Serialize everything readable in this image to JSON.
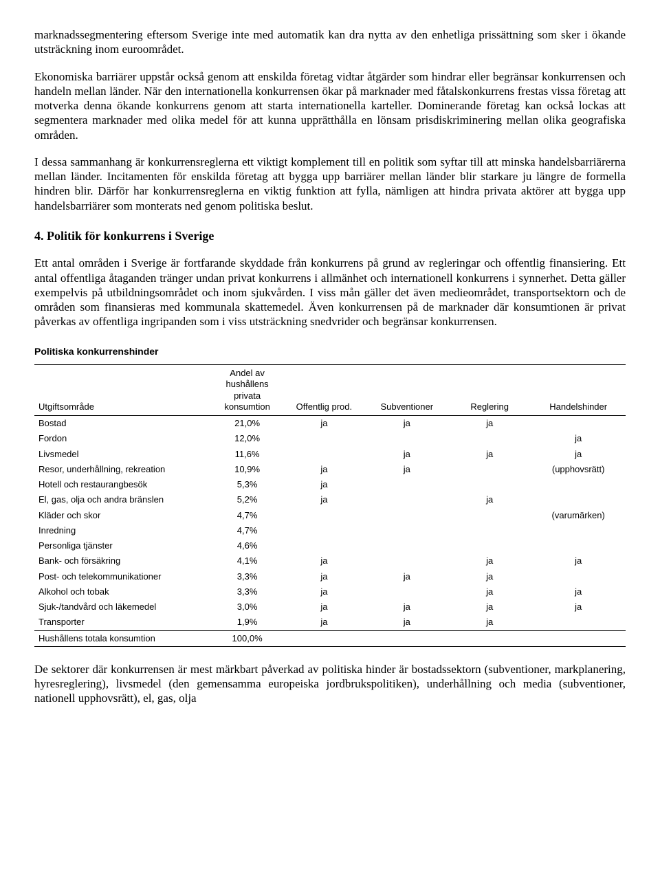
{
  "para1": "marknadssegmentering eftersom Sverige inte med automatik kan dra nytta av den enhetliga prissättning som sker i ökande utsträckning inom euroområdet.",
  "para2": "Ekonomiska barriärer uppstår också genom att enskilda företag vidtar åtgärder som hindrar eller begränsar konkurrensen och handeln mellan länder. När den internationella konkurrensen ökar på marknader med fåtalskonkurrens frestas vissa företag att motverka denna ökande konkurrens genom att starta internationella karteller. Dominerande företag kan också lockas att segmentera marknader med olika medel för att kunna upprätthålla en lönsam prisdiskriminering mellan olika geografiska områden.",
  "para3": "I dessa sammanhang är konkurrensreglerna ett viktigt komplement till en politik som syftar till att minska handelsbarriärerna mellan länder. Incitamenten för enskilda företag att bygga upp barriärer mellan länder blir starkare ju längre de formella hindren blir. Därför har konkurrensreglerna en viktig funktion att fylla, nämligen att hindra privata aktörer att bygga upp handelsbarriärer som monterats ned genom politiska beslut.",
  "heading": "4. Politik för konkurrens i Sverige",
  "para4": "Ett antal områden i Sverige är fortfarande skyddade från konkurrens på grund av regleringar och offentlig finansiering. Ett antal offentliga åtaganden tränger undan privat konkurrens i allmänhet och internationell konkurrens i synnerhet. Detta gäller exempelvis på utbildningsområdet och inom sjukvården. I viss mån gäller det även medieområdet, transportsektorn och de områden som finansieras med kommunala skattemedel. Även konkurrensen på de marknader där konsumtionen är privat påverkas av offentliga ingripanden som i viss utsträckning snedvrider och begränsar konkurrensen.",
  "tableTitle": "Politiska konkurrenshinder",
  "headers": {
    "area": "Utgiftsområde",
    "pct": "Andel av hushållens privata konsumtion",
    "off": "Offentlig prod.",
    "sub": "Subventioner",
    "reg": "Reglering",
    "hand": "Handelshinder"
  },
  "rows": [
    {
      "area": "Bostad",
      "pct": "21,0%",
      "off": "ja",
      "sub": "ja",
      "reg": "ja",
      "hand": ""
    },
    {
      "area": "Fordon",
      "pct": "12,0%",
      "off": "",
      "sub": "",
      "reg": "",
      "hand": "ja"
    },
    {
      "area": "Livsmedel",
      "pct": "11,6%",
      "off": "",
      "sub": "ja",
      "reg": "ja",
      "hand": "ja"
    },
    {
      "area": "Resor, underhållning, rekreation",
      "pct": "10,9%",
      "off": "ja",
      "sub": "ja",
      "reg": "",
      "hand": "(upphovsrätt)"
    },
    {
      "area": "Hotell och restaurangbesök",
      "pct": "5,3%",
      "off": "ja",
      "sub": "",
      "reg": "",
      "hand": ""
    },
    {
      "area": "El, gas, olja och andra bränslen",
      "pct": "5,2%",
      "off": "ja",
      "sub": "",
      "reg": "ja",
      "hand": ""
    },
    {
      "area": "Kläder och skor",
      "pct": "4,7%",
      "off": "",
      "sub": "",
      "reg": "",
      "hand": "(varumärken)"
    },
    {
      "area": "Inredning",
      "pct": "4,7%",
      "off": "",
      "sub": "",
      "reg": "",
      "hand": ""
    },
    {
      "area": "Personliga tjänster",
      "pct": "4,6%",
      "off": "",
      "sub": "",
      "reg": "",
      "hand": ""
    },
    {
      "area": "Bank- och försäkring",
      "pct": "4,1%",
      "off": "ja",
      "sub": "",
      "reg": "ja",
      "hand": "ja"
    },
    {
      "area": "Post- och telekommunikationer",
      "pct": "3,3%",
      "off": "ja",
      "sub": "ja",
      "reg": "ja",
      "hand": ""
    },
    {
      "area": "Alkohol och tobak",
      "pct": "3,3%",
      "off": "ja",
      "sub": "",
      "reg": "ja",
      "hand": "ja"
    },
    {
      "area": "Sjuk-/tandvård och läkemedel",
      "pct": "3,0%",
      "off": "ja",
      "sub": "ja",
      "reg": "ja",
      "hand": "ja"
    },
    {
      "area": "Transporter",
      "pct": "1,9%",
      "off": "ja",
      "sub": "ja",
      "reg": "ja",
      "hand": ""
    }
  ],
  "total": {
    "area": "Hushållens totala konsumtion",
    "pct": "100,0%"
  },
  "para5": "De sektorer där konkurrensen är mest märkbart påverkad av politiska hinder är bostadssektorn (subventioner, markplanering, hyresreglering), livsmedel (den gemensamma europeiska jordbrukspolitiken), underhållning och media (subventioner, nationell upphovsrätt), el, gas, olja"
}
